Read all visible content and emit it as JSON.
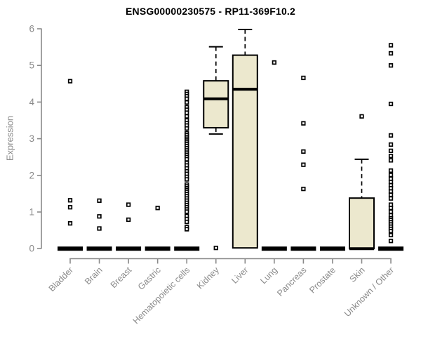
{
  "chart_data": {
    "type": "boxplot",
    "title": "ENSG00000230575 - RP11-369F10.2",
    "ylabel": "Expression",
    "xlabel": "",
    "ylim": [
      0,
      6
    ],
    "yticks": [
      0,
      1,
      2,
      3,
      4,
      5,
      6
    ],
    "grid": false,
    "legend": "none",
    "colors": {
      "box_fill": "#ece8ce",
      "box_border": "#000000",
      "median": "#000000",
      "whisker": "#000000",
      "marker": "#000000",
      "marker_fill": "#ffffff",
      "axis": "#8a8a8a",
      "tick_label": "#8a8a8a",
      "title": "#000000"
    },
    "categories": [
      "Bladder",
      "Brain",
      "Breast",
      "Gastric",
      "Hematopoietic cells",
      "Kidney",
      "Liver",
      "Lung",
      "Pancreas",
      "Prostate",
      "Skin",
      "Unknown / Other"
    ],
    "boxes": [
      {
        "category": "Bladder",
        "whislo": 0,
        "q1": 0,
        "med": 0,
        "q3": 0,
        "whishi": 0,
        "outliers": [
          4.57,
          1.32,
          1.13,
          0.69
        ]
      },
      {
        "category": "Brain",
        "whislo": 0,
        "q1": 0,
        "med": 0,
        "q3": 0,
        "whishi": 0,
        "outliers": [
          1.31,
          0.88,
          0.55
        ]
      },
      {
        "category": "Breast",
        "whislo": 0,
        "q1": 0,
        "med": 0,
        "q3": 0,
        "whishi": 0,
        "outliers": [
          1.2,
          0.79
        ]
      },
      {
        "category": "Gastric",
        "whislo": 0,
        "q1": 0,
        "med": 0,
        "q3": 0,
        "whishi": 0,
        "outliers": [
          1.11
        ]
      },
      {
        "category": "Hematopoietic cells",
        "whislo": 0,
        "q1": 0,
        "med": 0,
        "q3": 0,
        "whishi": 0,
        "outliers": [
          4.28,
          4.22,
          4.16,
          4.09,
          3.99,
          3.86,
          3.79,
          3.71,
          3.61,
          3.5,
          3.43,
          3.36,
          3.28,
          3.15,
          3.1,
          3.05,
          3.0,
          2.95,
          2.9,
          2.85,
          2.8,
          2.74,
          2.68,
          2.62,
          2.56,
          2.5,
          2.44,
          2.34,
          2.27,
          2.19,
          2.11,
          2.04,
          1.96,
          1.89,
          1.75,
          1.7,
          1.65,
          1.6,
          1.55,
          1.49,
          1.43,
          1.37,
          1.31,
          1.25,
          1.19,
          1.13,
          1.07,
          1.01,
          0.89,
          0.81,
          0.73,
          0.59,
          0.53
        ]
      },
      {
        "category": "Kidney",
        "whislo": 3.13,
        "q1": 3.3,
        "med": 4.09,
        "q3": 4.58,
        "whishi": 5.51,
        "outliers": [
          0.02
        ]
      },
      {
        "category": "Liver",
        "whislo": 0.02,
        "q1": 0.02,
        "med": 4.35,
        "q3": 5.28,
        "whishi": 5.98,
        "outliers": []
      },
      {
        "category": "Lung",
        "whislo": 0,
        "q1": 0,
        "med": 0,
        "q3": 0,
        "whishi": 0,
        "outliers": [
          5.08
        ]
      },
      {
        "category": "Pancreas",
        "whislo": 0,
        "q1": 0,
        "med": 0,
        "q3": 0,
        "whishi": 0,
        "outliers": [
          4.66,
          3.42,
          2.65,
          2.29,
          1.63
        ]
      },
      {
        "category": "Prostate",
        "whislo": 0,
        "q1": 0,
        "med": 0,
        "q3": 0,
        "whishi": 0,
        "outliers": []
      },
      {
        "category": "Skin",
        "whislo": 0,
        "q1": 0,
        "med": 0,
        "q3": 1.38,
        "whishi": 2.44,
        "outliers": [
          3.61
        ]
      },
      {
        "category": "Unknown / Other",
        "whislo": 0,
        "q1": 0,
        "med": 0,
        "q3": 0,
        "whishi": 0,
        "outliers": [
          5.55,
          5.33,
          5.0,
          3.95,
          3.09,
          2.84,
          2.67,
          2.53,
          2.41,
          2.13,
          2.01,
          1.91,
          1.82,
          1.73,
          1.65,
          1.56,
          1.47,
          1.37,
          1.2,
          1.11,
          1.01,
          0.91,
          0.83,
          0.78,
          0.72,
          0.66,
          0.6,
          0.54,
          0.48,
          0.37,
          0.21
        ]
      }
    ]
  }
}
